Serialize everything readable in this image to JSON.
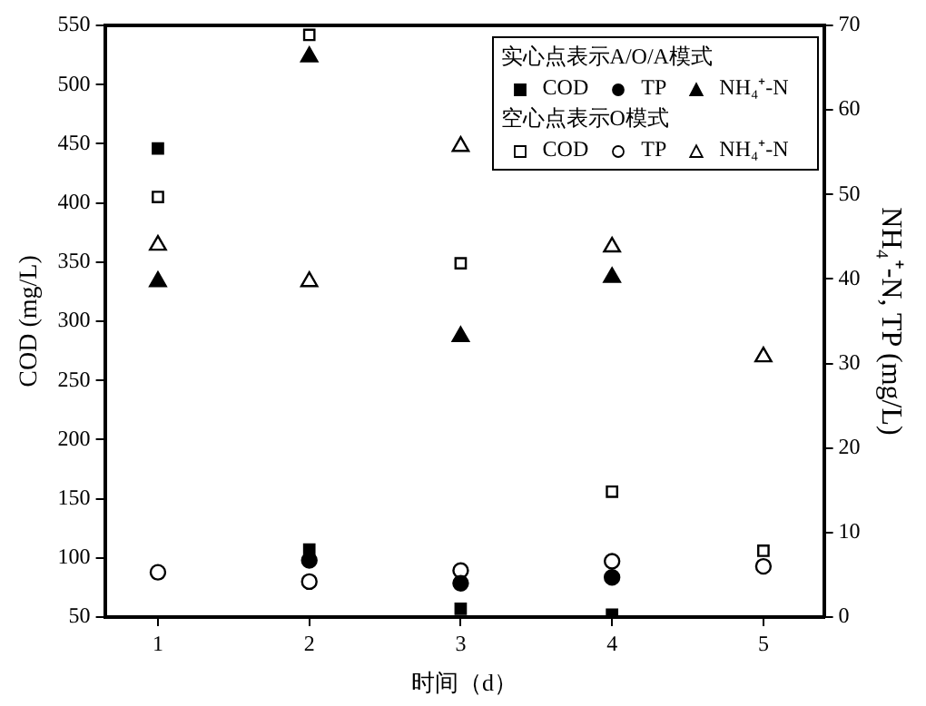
{
  "chart_data": {
    "type": "scatter",
    "xlabel": "时间（d）",
    "ylabel": "COD (mg/L)",
    "y2label": "NH₄⁺-N, TP (mg/L)",
    "x": [
      1,
      2,
      3,
      4,
      5
    ],
    "xlim": [
      0.65,
      5.4
    ],
    "xticks": [
      1,
      2,
      3,
      4,
      5
    ],
    "ylim": [
      50,
      550
    ],
    "yticks": [
      50,
      100,
      150,
      200,
      250,
      300,
      350,
      400,
      450,
      500,
      550
    ],
    "y2lim": [
      0,
      70
    ],
    "y2ticks": [
      0,
      10,
      20,
      30,
      40,
      50,
      60,
      70
    ],
    "annotations": [
      "实心点表示A/O/A模式",
      "空心点表示O模式"
    ],
    "legend": "top right",
    "grid": false,
    "series": [
      {
        "name": "COD",
        "color": "#000000",
        "marker": "square",
        "values": [
          446,
          107,
          57,
          52,
          null
        ]
      },
      {
        "name": "TP",
        "color": "#000000",
        "marker": "circle",
        "axis": "y2",
        "values": [
          null,
          6.7,
          4.0,
          4.7,
          null
        ]
      },
      {
        "name": "NH₄⁺-N",
        "color": "#000000",
        "marker": "triangle",
        "axis": "y2",
        "values": [
          39.7,
          66.3,
          33.2,
          40.2,
          null
        ]
      },
      {
        "name": "COD",
        "color": "#000000",
        "marker": "square",
        "values": [
          405,
          542,
          349,
          156,
          106
        ]
      },
      {
        "name": "TP",
        "color": "#000000",
        "marker": "circle",
        "axis": "y2",
        "values": [
          5.3,
          4.2,
          5.5,
          6.6,
          6.0
        ]
      },
      {
        "name": "NH₄⁺-N",
        "color": "#000000",
        "marker": "triangle",
        "axis": "y2",
        "values": [
          44,
          39.7,
          55.7,
          43.8,
          30.8
        ]
      }
    ]
  }
}
